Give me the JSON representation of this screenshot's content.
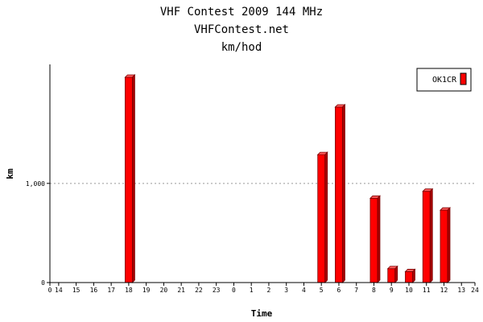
{
  "chart_data": {
    "type": "bar",
    "title": "VHF Contest 2009 144 MHz",
    "subtitle": "VHFContest.net",
    "subtitle2": "km/hod",
    "xlabel": "Time",
    "ylabel": "km",
    "ylim": [
      0,
      2200
    ],
    "yticks": [
      0,
      1000
    ],
    "ytick_labels": [
      "0",
      "1,000"
    ],
    "grid": "dotted horizontal at 1,000",
    "legend_position": "top-right",
    "x_start_label": "0",
    "x_end_label": "24",
    "categories": [
      "14",
      "15",
      "16",
      "17",
      "18",
      "19",
      "20",
      "21",
      "22",
      "23",
      "0",
      "1",
      "2",
      "3",
      "4",
      "5",
      "6",
      "7",
      "8",
      "9",
      "10",
      "11",
      "12",
      "13"
    ],
    "series": [
      {
        "name": "OK1CR",
        "color": "#ff0000",
        "values": [
          0,
          0,
          0,
          0,
          2070,
          0,
          0,
          0,
          0,
          0,
          0,
          0,
          0,
          0,
          0,
          1290,
          1770,
          0,
          850,
          140,
          110,
          920,
          730,
          0
        ]
      }
    ]
  }
}
